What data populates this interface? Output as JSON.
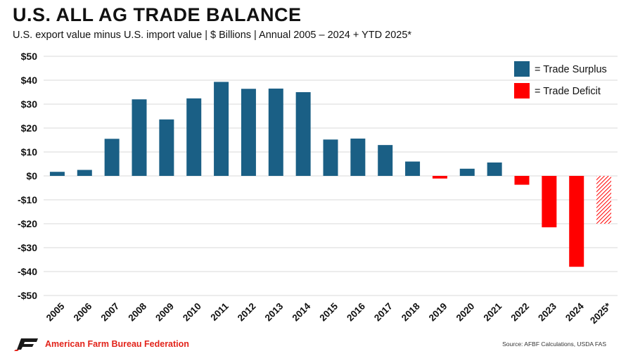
{
  "header": {
    "title": "U.S. ALL AG TRADE BALANCE",
    "subtitle": "U.S. export value minus U.S. import value | $ Billions | Annual 2005 – 2024 + YTD 2025*"
  },
  "footer": {
    "organization": "American Farm Bureau Federation",
    "source": "Source: AFBF Calculations, USDA FAS"
  },
  "colors": {
    "surplus": "#1a5f85",
    "deficit": "#ff0000",
    "grid": "#d9d9d9"
  },
  "chart_data": {
    "type": "bar",
    "title": "U.S. ALL AG TRADE BALANCE",
    "subtitle": "U.S. export value minus U.S. import value | $ Billions | Annual 2005 – 2024 + YTD 2025*",
    "categories": [
      "2005",
      "2006",
      "2007",
      "2008",
      "2009",
      "2010",
      "2011",
      "2012",
      "2013",
      "2014",
      "2015",
      "2016",
      "2017",
      "2018",
      "2019",
      "2020",
      "2021",
      "2022",
      "2023",
      "2024",
      "2025*"
    ],
    "values": [
      1.7,
      2.5,
      15.5,
      32.0,
      23.6,
      32.4,
      39.3,
      36.4,
      36.5,
      35.0,
      15.2,
      15.6,
      12.9,
      6.0,
      -1.1,
      3.0,
      5.6,
      -3.7,
      -21.5,
      -38.0,
      -20.0
    ],
    "ytd_categories": [
      "2025*"
    ],
    "ylim": [
      -50,
      50
    ],
    "yticks": [
      -50,
      -40,
      -30,
      -20,
      -10,
      0,
      10,
      20,
      30,
      40,
      50
    ],
    "ytick_labels": [
      "-$50",
      "-$40",
      "-$30",
      "-$20",
      "-$10",
      "$0",
      "$10",
      "$20",
      "$30",
      "$40",
      "$50"
    ],
    "grid": true,
    "legend": {
      "position": "top-right",
      "entries": [
        {
          "label": "= Trade Surplus",
          "color": "#1a5f85"
        },
        {
          "label": "= Trade Deficit",
          "color": "#ff0000"
        }
      ]
    },
    "xlabel": "",
    "ylabel": ""
  }
}
